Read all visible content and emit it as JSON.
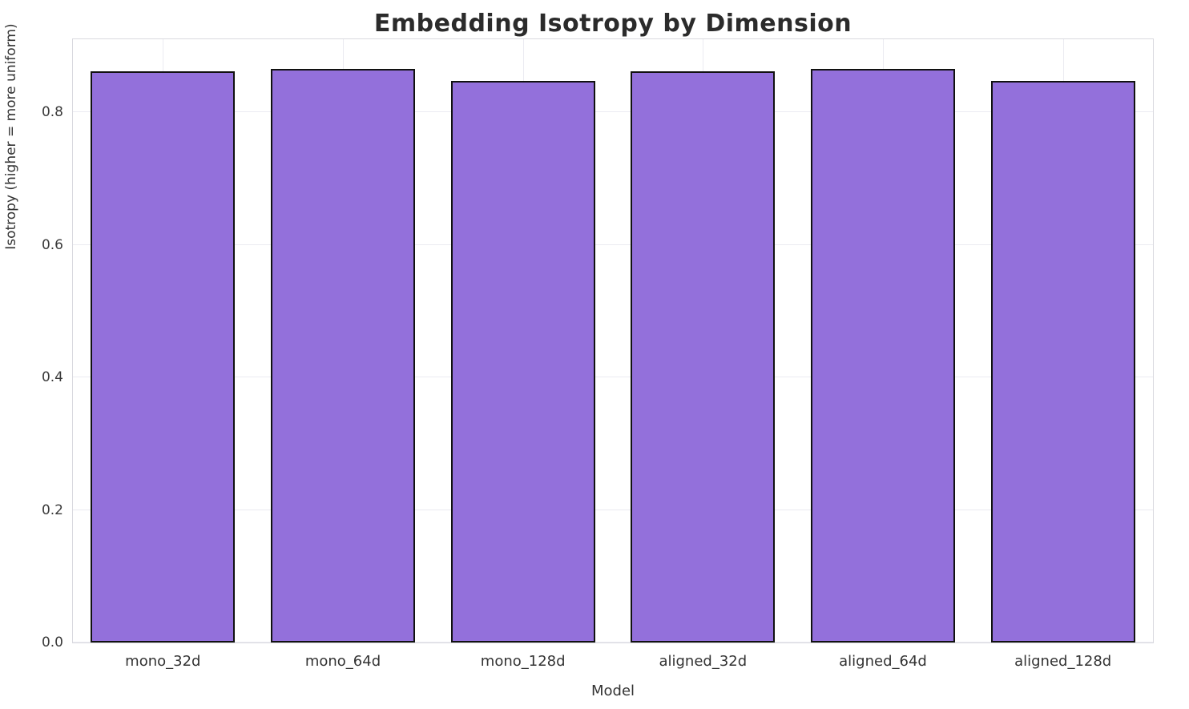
{
  "chart_data": {
    "type": "bar",
    "title": "Embedding Isotropy by Dimension",
    "xlabel": "Model",
    "ylabel": "Isotropy (higher = more uniform)",
    "categories": [
      "mono_32d",
      "mono_64d",
      "mono_128d",
      "aligned_32d",
      "aligned_64d",
      "aligned_128d"
    ],
    "values": [
      0.862,
      0.865,
      0.847,
      0.862,
      0.865,
      0.847
    ],
    "ylim": [
      0,
      0.91
    ],
    "yticks": [
      0.0,
      0.2,
      0.4,
      0.6,
      0.8
    ],
    "grid": true,
    "legend": "none",
    "bar_color": "#9370DB",
    "bar_edge_color": "#111111",
    "bar_width_fraction": 0.8
  }
}
